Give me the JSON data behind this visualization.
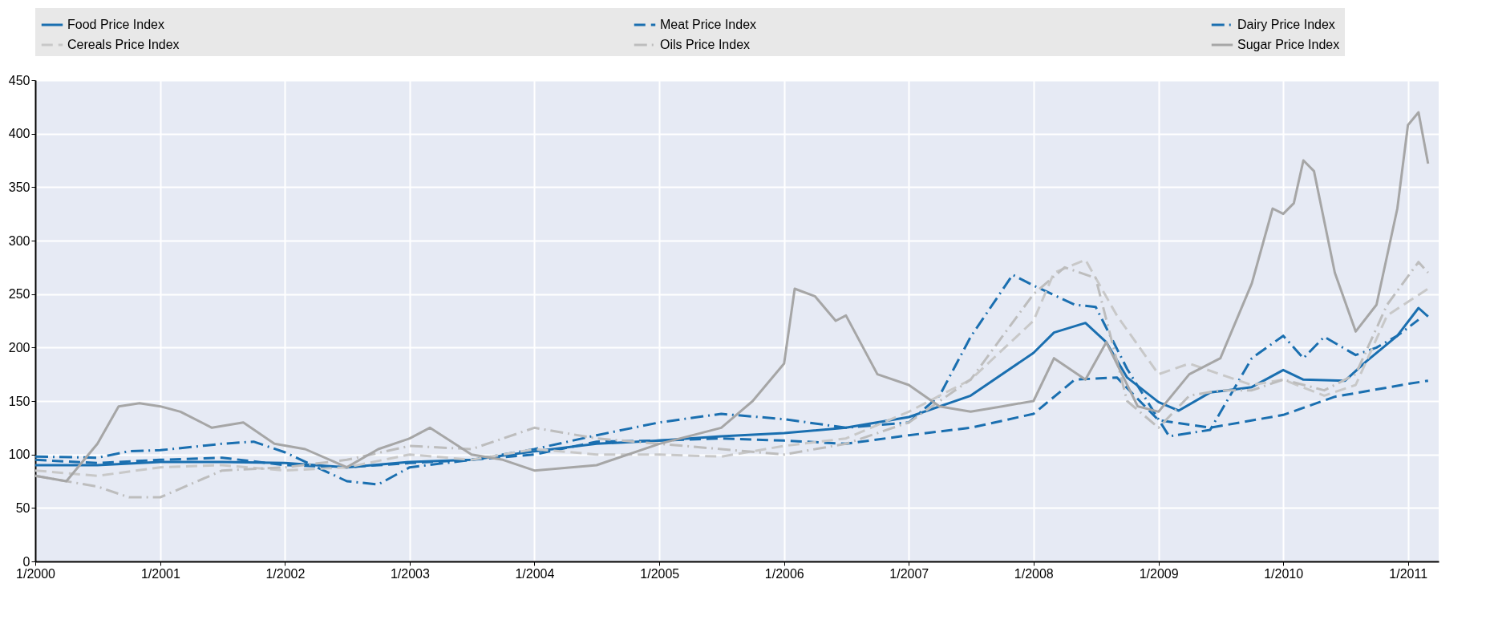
{
  "chart_data": {
    "type": "line",
    "xlim": [
      "2000-01",
      "2011-04"
    ],
    "xticks": [
      {
        "value": "2000-01",
        "label": "1/2000"
      },
      {
        "value": "2001-01",
        "label": "1/2001"
      },
      {
        "value": "2002-01",
        "label": "1/2002"
      },
      {
        "value": "2003-01",
        "label": "1/2003"
      },
      {
        "value": "2004-01",
        "label": "1/2004"
      },
      {
        "value": "2005-01",
        "label": "1/2005"
      },
      {
        "value": "2006-01",
        "label": "1/2006"
      },
      {
        "value": "2007-01",
        "label": "1/2007"
      },
      {
        "value": "2008-01",
        "label": "1/2008"
      },
      {
        "value": "2009-01",
        "label": "1/2009"
      },
      {
        "value": "2010-01",
        "label": "1/2010"
      },
      {
        "value": "2011-01",
        "label": "1/2011"
      }
    ],
    "ylim": [
      0,
      450
    ],
    "yticks": [
      0,
      50,
      100,
      150,
      200,
      250,
      300,
      350,
      400,
      450
    ],
    "grid": true,
    "legend": "top",
    "series": [
      {
        "name": "Food Price Index",
        "color": "#1a6fb0",
        "line_style": "solid",
        "x": [
          "2000-01",
          "2000-07",
          "2001-01",
          "2001-07",
          "2002-01",
          "2002-07",
          "2003-01",
          "2003-07",
          "2004-01",
          "2004-07",
          "2005-01",
          "2005-07",
          "2006-01",
          "2006-07",
          "2007-01",
          "2007-07",
          "2008-01",
          "2008-03",
          "2008-06",
          "2008-08",
          "2008-10",
          "2009-01",
          "2009-03",
          "2009-06",
          "2009-10",
          "2010-01",
          "2010-03",
          "2010-07",
          "2010-09",
          "2010-12",
          "2011-02",
          "2011-03"
        ],
        "values": [
          90,
          90,
          93,
          93,
          92,
          88,
          93,
          95,
          103,
          110,
          113,
          117,
          120,
          125,
          135,
          155,
          195,
          214,
          223,
          205,
          172,
          149,
          141,
          158,
          163,
          179,
          170,
          169,
          187,
          211,
          237,
          229
        ]
      },
      {
        "name": "Meat Price Index",
        "color": "#1a6fb0",
        "line_style": "dashed",
        "x": [
          "2000-01",
          "2000-07",
          "2001-01",
          "2001-07",
          "2002-01",
          "2002-07",
          "2003-01",
          "2003-07",
          "2004-01",
          "2004-07",
          "2005-01",
          "2005-07",
          "2006-01",
          "2006-07",
          "2007-01",
          "2007-07",
          "2008-01",
          "2008-05",
          "2008-09",
          "2009-01",
          "2009-06",
          "2010-01",
          "2010-06",
          "2011-01",
          "2011-03"
        ],
        "values": [
          95,
          92,
          95,
          97,
          90,
          88,
          92,
          95,
          100,
          112,
          113,
          115,
          113,
          110,
          118,
          125,
          138,
          170,
          172,
          132,
          125,
          137,
          154,
          166,
          169
        ]
      },
      {
        "name": "Dairy Price Index",
        "color": "#1a6fb0",
        "line_style": "dashdot",
        "x": [
          "2000-01",
          "2000-07",
          "2000-10",
          "2001-01",
          "2001-07",
          "2001-10",
          "2002-01",
          "2002-07",
          "2002-10",
          "2003-01",
          "2003-07",
          "2004-01",
          "2004-07",
          "2005-01",
          "2005-07",
          "2006-01",
          "2006-07",
          "2007-01",
          "2007-04",
          "2007-07",
          "2007-11",
          "2008-01",
          "2008-05",
          "2008-07",
          "2008-10",
          "2009-02",
          "2009-06",
          "2009-10",
          "2010-01",
          "2010-03",
          "2010-05",
          "2010-08",
          "2010-10",
          "2010-12",
          "2011-02"
        ],
        "values": [
          98,
          97,
          103,
          104,
          110,
          112,
          102,
          75,
          72,
          88,
          95,
          105,
          118,
          130,
          138,
          133,
          125,
          130,
          155,
          210,
          268,
          258,
          240,
          238,
          180,
          117,
          123,
          190,
          211,
          190,
          210,
          193,
          200,
          211,
          226
        ]
      },
      {
        "name": "Cereals Price Index",
        "color": "#c8c8c8",
        "line_style": "dashed",
        "x": [
          "2000-01",
          "2000-07",
          "2001-01",
          "2001-07",
          "2002-01",
          "2002-07",
          "2003-01",
          "2003-07",
          "2004-01",
          "2004-07",
          "2005-01",
          "2005-07",
          "2006-01",
          "2006-07",
          "2007-01",
          "2007-07",
          "2008-01",
          "2008-03",
          "2008-06",
          "2008-09",
          "2009-01",
          "2009-04",
          "2009-07",
          "2009-10",
          "2010-01",
          "2010-05",
          "2010-08",
          "2010-11",
          "2011-03"
        ],
        "values": [
          85,
          80,
          88,
          90,
          85,
          88,
          100,
          95,
          105,
          100,
          100,
          98,
          108,
          115,
          140,
          170,
          225,
          270,
          282,
          230,
          175,
          185,
          175,
          165,
          170,
          155,
          165,
          230,
          255
        ]
      },
      {
        "name": "Oils Price Index",
        "color": "#bdbdbd",
        "line_style": "dashdot",
        "x": [
          "2000-01",
          "2000-07",
          "2000-10",
          "2001-01",
          "2001-07",
          "2002-01",
          "2002-07",
          "2003-01",
          "2003-07",
          "2004-01",
          "2004-07",
          "2005-01",
          "2005-07",
          "2006-01",
          "2006-07",
          "2007-01",
          "2007-07",
          "2008-01",
          "2008-04",
          "2008-07",
          "2008-10",
          "2009-01",
          "2009-04",
          "2009-07",
          "2009-10",
          "2010-01",
          "2010-05",
          "2010-08",
          "2010-11",
          "2011-02",
          "2011-03"
        ],
        "values": [
          80,
          70,
          60,
          60,
          85,
          88,
          95,
          108,
          105,
          125,
          115,
          110,
          105,
          100,
          110,
          130,
          170,
          250,
          275,
          265,
          150,
          125,
          155,
          160,
          160,
          170,
          160,
          175,
          240,
          280,
          270
        ]
      },
      {
        "name": "Sugar Price Index",
        "color": "#a6a6a6",
        "line_style": "solid",
        "x": [
          "2000-01",
          "2000-04",
          "2000-07",
          "2000-09",
          "2000-11",
          "2001-01",
          "2001-03",
          "2001-06",
          "2001-09",
          "2001-12",
          "2002-03",
          "2002-07",
          "2002-10",
          "2003-01",
          "2003-03",
          "2003-07",
          "2003-10",
          "2004-01",
          "2004-07",
          "2005-01",
          "2005-07",
          "2005-10",
          "2006-01",
          "2006-02",
          "2006-04",
          "2006-06",
          "2006-07",
          "2006-10",
          "2007-01",
          "2007-04",
          "2007-07",
          "2007-10",
          "2008-01",
          "2008-03",
          "2008-06",
          "2008-08",
          "2008-11",
          "2009-01",
          "2009-04",
          "2009-07",
          "2009-10",
          "2009-12",
          "2010-01",
          "2010-02",
          "2010-03",
          "2010-04",
          "2010-06",
          "2010-08",
          "2010-10",
          "2010-12",
          "2011-01",
          "2011-02",
          "2011-03"
        ],
        "values": [
          80,
          75,
          110,
          145,
          148,
          145,
          140,
          125,
          130,
          110,
          105,
          88,
          105,
          115,
          125,
          100,
          95,
          85,
          90,
          110,
          125,
          150,
          185,
          255,
          248,
          225,
          230,
          175,
          165,
          145,
          140,
          145,
          150,
          190,
          170,
          205,
          145,
          140,
          175,
          190,
          260,
          330,
          325,
          335,
          375,
          365,
          270,
          215,
          240,
          330,
          408,
          420,
          372
        ]
      }
    ]
  }
}
